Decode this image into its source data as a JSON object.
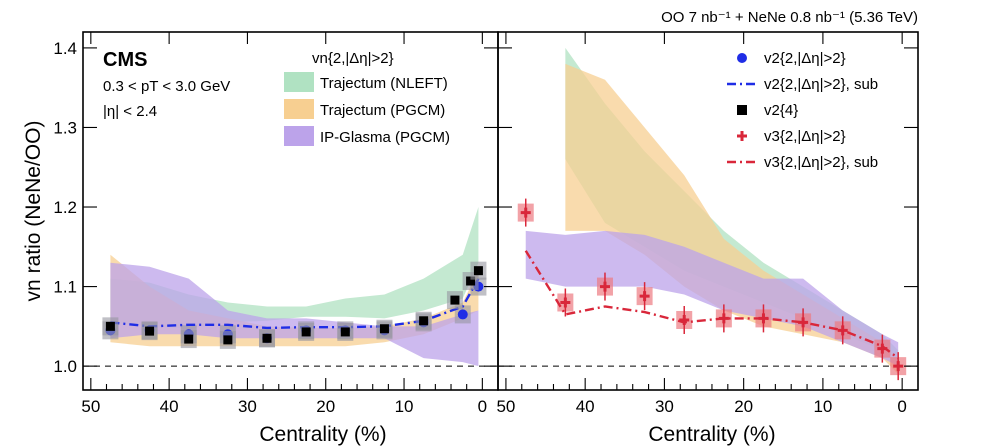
{
  "header": {
    "lumi_label": "OO 7 nb⁻¹ + NeNe 0.8 nb⁻¹ (5.36 TeV)"
  },
  "info": {
    "experiment": "CMS",
    "pt_cut": "0.3 < pT < 3.0 GeV",
    "eta_cut": "|η| < 2.4"
  },
  "colors": {
    "nleft": "#b0e2c2",
    "pgcm_traj": "#f7cf91",
    "ipglasma": "#bca3ea",
    "v2": "#1f2de6",
    "v4": "#000000",
    "v3": "#d9273a"
  },
  "chart_data": {
    "type": "scatter",
    "xlabel": "Centrality (%)",
    "ylabel": "vn ratio (NeNe/OO)",
    "xlim": [
      51,
      -2
    ],
    "ylim": [
      0.97,
      1.42
    ],
    "x_ticks": [
      50,
      40,
      30,
      20,
      10,
      0
    ],
    "y_ticks": [
      1.0,
      1.1,
      1.2,
      1.3,
      1.4
    ],
    "reference_line": 1.0,
    "left_legend_title": "vn{2,|Δη|>2}",
    "right_legend": [
      "v2{2,|Δη|>2}",
      "v2{2,|Δη|>2}, sub",
      "v2{4}",
      "v3{2,|Δη|>2}",
      "v3{2,|Δη|>2}, sub"
    ],
    "panels": [
      {
        "name": "left",
        "bands": [
          {
            "name": "Trajectum (NLEFT)",
            "x": [
              47.5,
              42.5,
              37.5,
              32.5,
              27.5,
              22.5,
              17.5,
              12.5,
              7.5,
              2.5,
              0.5
            ],
            "low": [
              1.055,
              1.05,
              1.047,
              1.055,
              1.057,
              1.062,
              1.062,
              1.06,
              1.07,
              1.085,
              1.13
            ],
            "high": [
              1.11,
              1.105,
              1.09,
              1.08,
              1.075,
              1.075,
              1.085,
              1.09,
              1.11,
              1.14,
              1.2
            ]
          },
          {
            "name": "Trajectum (PGCM)",
            "x": [
              47.5,
              42.5,
              37.5,
              32.5,
              27.5,
              22.5,
              17.5,
              12.5,
              7.5,
              2.5,
              0.5
            ],
            "low": [
              1.03,
              1.025,
              1.025,
              1.025,
              1.025,
              1.025,
              1.025,
              1.03,
              1.04,
              1.06,
              1.07
            ],
            "high": [
              1.14,
              1.1,
              1.07,
              1.06,
              1.05,
              1.048,
              1.048,
              1.05,
              1.06,
              1.08,
              1.12
            ]
          },
          {
            "name": "IP-Glasma (PGCM)",
            "x": [
              47.5,
              42.5,
              37.5,
              32.5,
              27.5,
              22.5,
              17.5,
              12.5,
              7.5,
              2.5,
              0.5
            ],
            "low": [
              1.035,
              1.04,
              1.04,
              1.035,
              1.035,
              1.035,
              1.035,
              1.035,
              1.01,
              1.005,
              1.0
            ],
            "high": [
              1.13,
              1.125,
              1.11,
              1.07,
              1.06,
              1.06,
              1.055,
              1.05,
              1.05,
              1.065,
              1.07
            ]
          }
        ],
        "series": [
          {
            "name": "v2{2,|Δη|>2}",
            "marker": "circle",
            "x": [
              47.5,
              42.5,
              37.5,
              32.5,
              27.5,
              22.5,
              17.5,
              12.5,
              7.5,
              2.5,
              0.5
            ],
            "values": [
              1.045,
              1.045,
              1.04,
              1.04,
              1.035,
              1.045,
              1.045,
              1.045,
              1.055,
              1.065,
              1.1
            ]
          },
          {
            "name": "v2{2,|Δη|>2}, sub",
            "marker": "dashdot",
            "x": [
              47.5,
              42.5,
              37.5,
              32.5,
              27.5,
              22.5,
              17.5,
              12.5,
              7.5,
              2.5,
              0.5
            ],
            "values": [
              1.055,
              1.05,
              1.052,
              1.052,
              1.048,
              1.049,
              1.049,
              1.05,
              1.057,
              1.075,
              1.11
            ]
          },
          {
            "name": "v2{4}",
            "marker": "square",
            "x": [
              47.5,
              42.5,
              37.5,
              32.5,
              27.5,
              22.5,
              17.5,
              12.5,
              7.5,
              3.5,
              1.5,
              0.5
            ],
            "values": [
              1.05,
              1.044,
              1.034,
              1.033,
              1.035,
              1.043,
              1.043,
              1.047,
              1.057,
              1.083,
              1.107,
              1.12
            ]
          }
        ]
      },
      {
        "name": "right",
        "bands": [
          {
            "name": "Trajectum (NLEFT)",
            "x": [
              42.5,
              37.5,
              32.5,
              27.5,
              22.5,
              17.5,
              12.5,
              7.5,
              2.5,
              0.5
            ],
            "low": [
              1.26,
              1.18,
              1.15,
              1.12,
              1.1,
              1.08,
              1.06,
              1.04,
              1.02,
              1.005
            ],
            "high": [
              1.4,
              1.33,
              1.27,
              1.22,
              1.17,
              1.13,
              1.1,
              1.07,
              1.04,
              1.02
            ]
          },
          {
            "name": "Trajectum (PGCM)",
            "x": [
              42.5,
              37.5,
              32.5,
              27.5,
              22.5,
              17.5,
              12.5,
              7.5,
              2.5,
              0.5
            ],
            "low": [
              1.17,
              1.17,
              1.14,
              1.1,
              1.07,
              1.05,
              1.04,
              1.03,
              1.01,
              0.99
            ],
            "high": [
              1.38,
              1.36,
              1.3,
              1.24,
              1.16,
              1.12,
              1.09,
              1.06,
              1.03,
              1.01
            ]
          },
          {
            "name": "IP-Glasma (PGCM)",
            "x": [
              47.5,
              42.5,
              37.5,
              32.5,
              27.5,
              22.5,
              17.5,
              12.5,
              7.5,
              2.5,
              0.5
            ],
            "low": [
              1.11,
              1.1,
              1.1,
              1.1,
              1.09,
              1.07,
              1.06,
              1.05,
              1.03,
              1.01,
              1.0
            ],
            "high": [
              1.17,
              1.165,
              1.17,
              1.165,
              1.15,
              1.13,
              1.11,
              1.11,
              1.07,
              1.04,
              1.03
            ]
          }
        ],
        "series": [
          {
            "name": "v3{2,|Δη|>2}",
            "marker": "cross",
            "x": [
              47.5,
              42.5,
              37.5,
              32.5,
              27.5,
              22.5,
              17.5,
              12.5,
              7.5,
              2.5,
              0.5
            ],
            "values": [
              1.193,
              1.08,
              1.1,
              1.088,
              1.058,
              1.06,
              1.06,
              1.055,
              1.045,
              1.022,
              1.0
            ]
          },
          {
            "name": "v3{2,|Δη|>2}, sub",
            "marker": "dashdot",
            "x": [
              47.5,
              42.5,
              37.5,
              32.5,
              27.5,
              22.5,
              17.5,
              12.5,
              7.5,
              2.5,
              0.5
            ],
            "values": [
              1.145,
              1.065,
              1.075,
              1.068,
              1.055,
              1.06,
              1.06,
              1.055,
              1.045,
              1.025,
              1.01
            ]
          }
        ]
      }
    ]
  }
}
